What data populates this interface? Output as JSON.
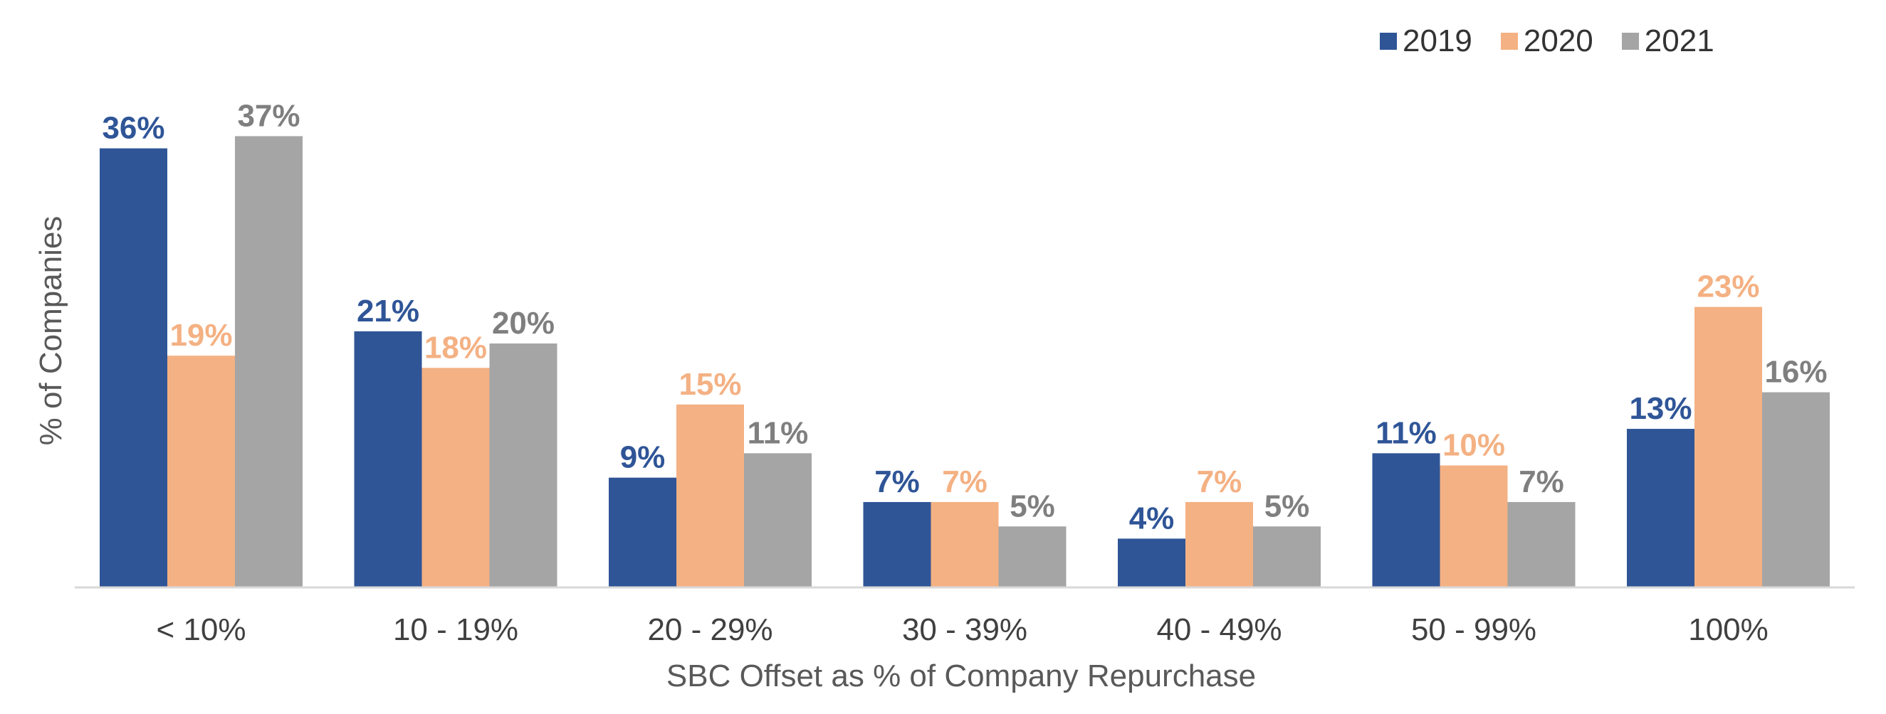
{
  "chart_data": {
    "type": "bar",
    "title": "",
    "xlabel": "SBC Offset as % of Company Repurchase",
    "ylabel": "% of Companies",
    "ylim": [
      0,
      40
    ],
    "grid": false,
    "legend_position": "top-right",
    "categories": [
      "< 10%",
      "10 - 19%",
      "20 - 29%",
      "30 - 39%",
      "40 - 49%",
      "50 - 99%",
      "100%"
    ],
    "series": [
      {
        "name": "2019",
        "color": "#2F5597",
        "label_color": "#2F5597",
        "values": [
          36,
          21,
          9,
          7,
          4,
          11,
          13
        ],
        "labels": [
          "36%",
          "21%",
          "9%",
          "7%",
          "4%",
          "11%",
          "13%"
        ]
      },
      {
        "name": "2020",
        "color": "#F4B183",
        "label_color": "#F4B183",
        "values": [
          19,
          18,
          15,
          7,
          7,
          10,
          23
        ],
        "labels": [
          "19%",
          "18%",
          "15%",
          "7%",
          "7%",
          "10%",
          "23%"
        ]
      },
      {
        "name": "2021",
        "color": "#A5A5A5",
        "label_color": "#7F7F7F",
        "values": [
          37,
          20,
          11,
          5,
          5,
          7,
          16
        ],
        "labels": [
          "37%",
          "20%",
          "11%",
          "5%",
          "5%",
          "7%",
          "16%"
        ]
      }
    ]
  }
}
